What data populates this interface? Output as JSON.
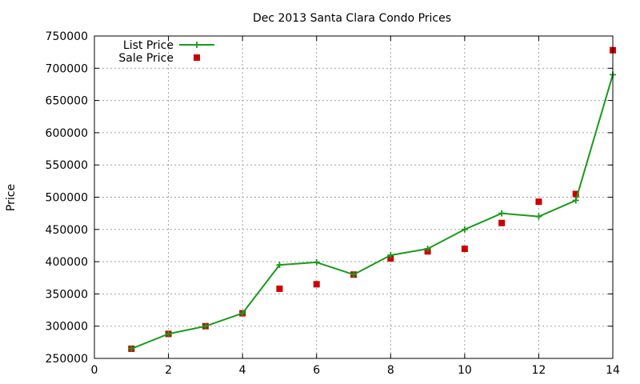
{
  "chart_data": {
    "type": "line",
    "title": "Dec 2013 Santa Clara Condo Prices",
    "xlabel": "",
    "ylabel": "Price",
    "xlim": [
      0,
      14
    ],
    "ylim": [
      250000,
      750000
    ],
    "x_ticks": [
      0,
      2,
      4,
      6,
      8,
      10,
      12,
      14
    ],
    "y_ticks": [
      250000,
      300000,
      350000,
      400000,
      450000,
      500000,
      550000,
      600000,
      650000,
      700000,
      750000
    ],
    "grid": true,
    "legend_position": "top-left",
    "series": [
      {
        "name": "List Price",
        "style": "line with plus markers",
        "color": "#1a9a1a",
        "points": [
          [
            1,
            265000
          ],
          [
            2,
            288000
          ],
          [
            3,
            300000
          ],
          [
            4,
            320000
          ],
          [
            5,
            395000
          ],
          [
            6,
            399000
          ],
          [
            7,
            380000
          ],
          [
            8,
            410000
          ],
          [
            9,
            420000
          ],
          [
            10,
            450000
          ],
          [
            11,
            475000
          ],
          [
            12,
            470000
          ],
          [
            13,
            495000
          ],
          [
            14,
            690000
          ]
        ]
      },
      {
        "name": "Sale Price",
        "style": "square markers",
        "color": "#cc0000",
        "points": [
          [
            1,
            265000
          ],
          [
            2,
            288000
          ],
          [
            3,
            300000
          ],
          [
            4,
            320000
          ],
          [
            5,
            358000
          ],
          [
            6,
            365000
          ],
          [
            7,
            380000
          ],
          [
            8,
            405000
          ],
          [
            9,
            416000
          ],
          [
            10,
            420000
          ],
          [
            11,
            460000
          ],
          [
            12,
            493000
          ],
          [
            13,
            505000
          ],
          [
            14,
            728000
          ]
        ]
      }
    ]
  }
}
